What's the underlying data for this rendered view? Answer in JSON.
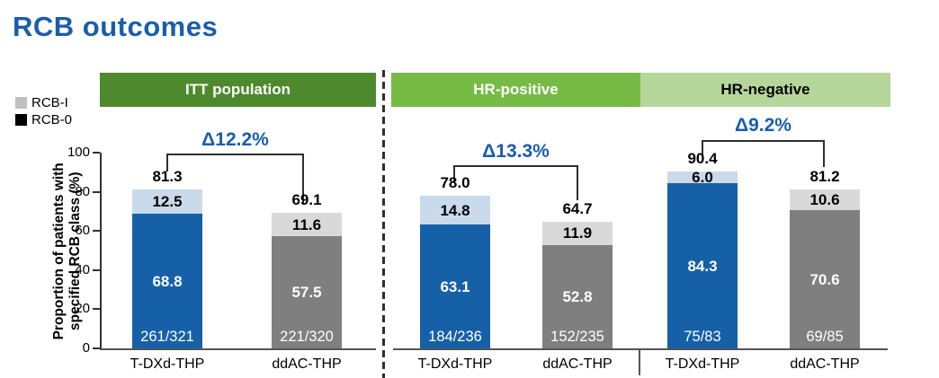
{
  "title": "RCB outcomes",
  "colors": {
    "title_blue": "#1A5DAB",
    "delta_blue": "#1A5DAB",
    "dark_blue": "#1660A8",
    "light_blue": "#C9DAEB",
    "dark_gray": "#7F7F7F",
    "light_gray": "#D9D9D9",
    "itt_green": "#4E8A2D",
    "hr_pos_green": "#76BB45",
    "hr_neg_green": "#B5D79B"
  },
  "legend": [
    {
      "label": "RCB-I",
      "color": "#BFBFBF"
    },
    {
      "label": "RCB-0",
      "color": "#000000"
    }
  ],
  "y_axis": {
    "label_line1": "Proportion of patients with",
    "label_line2": "specified RCB class (%)",
    "ticks": [
      "0",
      "20",
      "40",
      "60",
      "80",
      "100"
    ]
  },
  "chart_data": {
    "type": "bar",
    "stacked": true,
    "ylabel": "Proportion of patients with specified RCB class (%)",
    "ylim": [
      0,
      100
    ],
    "legend_entries": [
      "RCB-I",
      "RCB-0"
    ],
    "groups": [
      {
        "header": "ITT population",
        "header_bg": "#4E8A2D",
        "header_fg": "#FFFFFF",
        "delta": "Δ12.2%",
        "bars": [
          {
            "arm": "T-DXd-THP",
            "rcb0": 68.8,
            "rcb1": 12.5,
            "rcb0_label": "68.8",
            "rcb1_label": "12.5",
            "total_label": "81.3",
            "fraction": "261/321",
            "color0": "#1660A8",
            "color1": "#C9DAEB"
          },
          {
            "arm": "ddAC-THP",
            "rcb0": 57.5,
            "rcb1": 11.6,
            "rcb0_label": "57.5",
            "rcb1_label": "11.6",
            "total_label": "69.1",
            "fraction": "221/320",
            "color0": "#7F7F7F",
            "color1": "#D9D9D9"
          }
        ]
      },
      {
        "header": "HR-positive",
        "header_bg": "#76BB45",
        "header_fg": "#FFFFFF",
        "delta": "Δ13.3%",
        "bars": [
          {
            "arm": "T-DXd-THP",
            "rcb0": 63.1,
            "rcb1": 14.8,
            "rcb0_label": "63.1",
            "rcb1_label": "14.8",
            "total_label": "78.0",
            "fraction": "184/236",
            "color0": "#1660A8",
            "color1": "#C9DAEB"
          },
          {
            "arm": "ddAC-THP",
            "rcb0": 52.8,
            "rcb1": 11.9,
            "rcb0_label": "52.8",
            "rcb1_label": "11.9",
            "total_label": "64.7",
            "fraction": "152/235",
            "color0": "#7F7F7F",
            "color1": "#D9D9D9"
          }
        ]
      },
      {
        "header": "HR-negative",
        "header_bg": "#B5D79B",
        "header_fg": "#000000",
        "delta": "Δ9.2%",
        "bars": [
          {
            "arm": "T-DXd-THP",
            "rcb0": 84.3,
            "rcb1": 6.0,
            "rcb0_label": "84.3",
            "rcb1_label": "6.0",
            "total_label": "90.4",
            "fraction": "75/83",
            "color0": "#1660A8",
            "color1": "#C9DAEB"
          },
          {
            "arm": "ddAC-THP",
            "rcb0": 70.6,
            "rcb1": 10.6,
            "rcb0_label": "70.6",
            "rcb1_label": "10.6",
            "total_label": "81.2",
            "fraction": "69/85",
            "color0": "#7F7F7F",
            "color1": "#D9D9D9"
          }
        ]
      }
    ]
  }
}
